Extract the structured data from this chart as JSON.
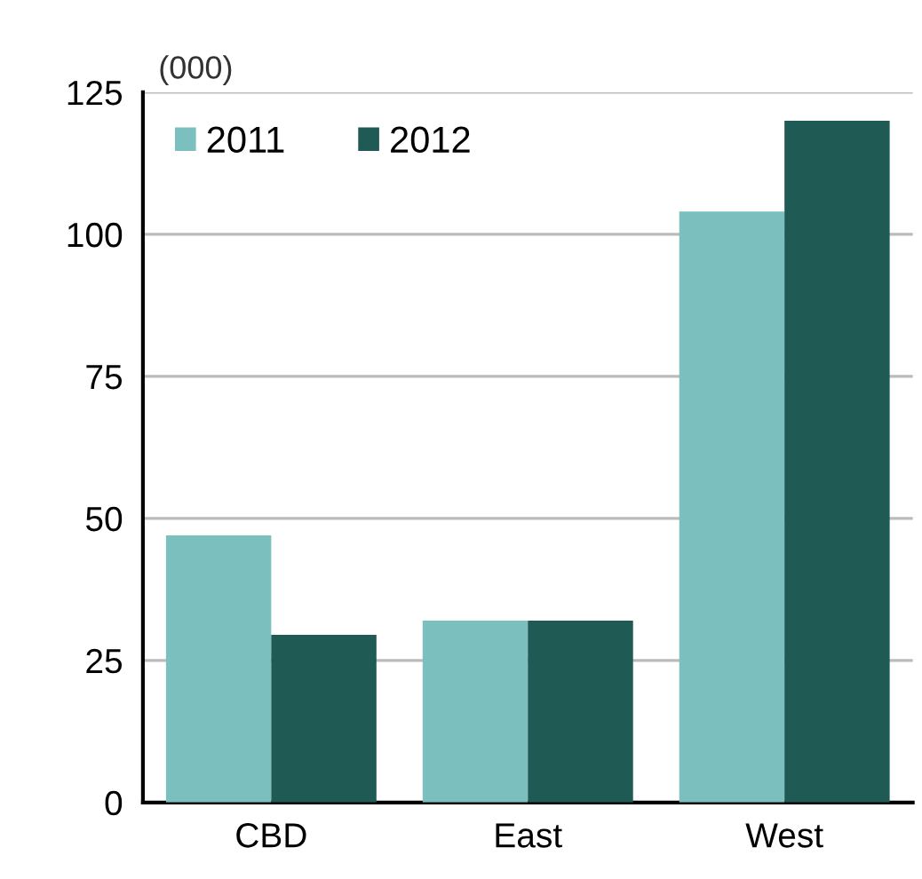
{
  "chart_data": {
    "type": "bar",
    "ylabel": "(000)",
    "categories": [
      "CBD",
      "East",
      "West"
    ],
    "series": [
      {
        "name": "2011",
        "color": "#7bbfbf",
        "values": [
          47,
          32,
          104
        ]
      },
      {
        "name": "2012",
        "color": "#1f5a55",
        "values": [
          29.5,
          32,
          120
        ]
      }
    ],
    "ylim": [
      0,
      125
    ],
    "yticks": [
      0,
      25,
      50,
      75,
      100,
      125
    ],
    "grid": "y",
    "legend": "top left"
  }
}
